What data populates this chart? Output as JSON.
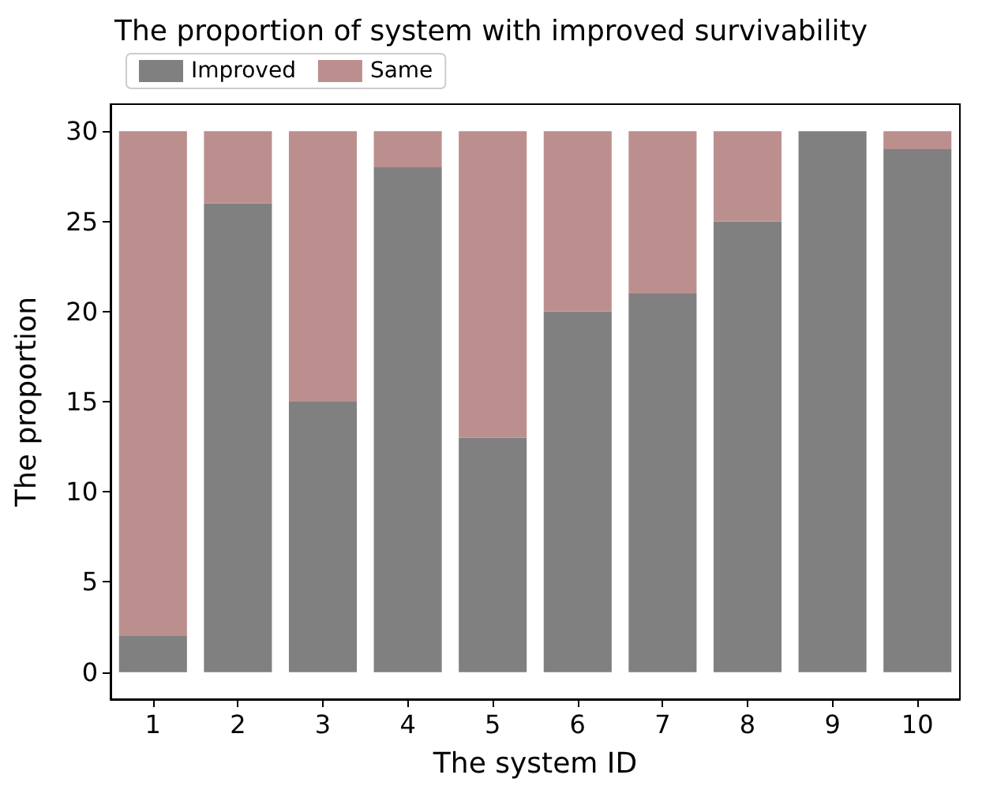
{
  "chart_data": {
    "type": "bar",
    "title": "The proportion of system with improved survivability",
    "xlabel": "The system ID",
    "ylabel": "The proportion",
    "categories": [
      "1",
      "2",
      "3",
      "4",
      "5",
      "6",
      "7",
      "8",
      "9",
      "10"
    ],
    "stacked": true,
    "series": [
      {
        "name": "Improved",
        "color": "#808080",
        "values": [
          2,
          26,
          15,
          28,
          13,
          20,
          21,
          25,
          30,
          29
        ]
      },
      {
        "name": "Same",
        "color": "#bc8f8f",
        "values": [
          28,
          4,
          15,
          2,
          17,
          10,
          9,
          5,
          0,
          1
        ]
      }
    ],
    "ylim": [
      -1.5,
      31.5
    ],
    "yticks": [
      0,
      5,
      10,
      15,
      20,
      25,
      30
    ],
    "grid": false,
    "legend": "top left"
  }
}
